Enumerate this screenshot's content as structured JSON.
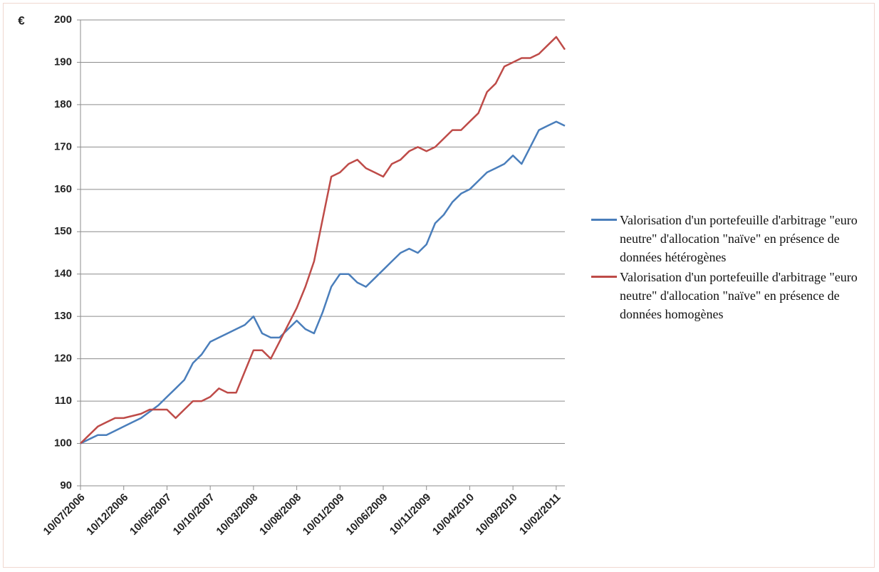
{
  "chart_data": {
    "type": "line",
    "ylabel": "€",
    "categories": [
      "10/07/2006",
      null,
      null,
      null,
      null,
      "10/12/2006",
      null,
      null,
      null,
      null,
      "10/05/2007",
      null,
      null,
      null,
      null,
      "10/10/2007",
      null,
      null,
      null,
      null,
      "10/03/2008",
      null,
      null,
      null,
      null,
      "10/08/2008",
      null,
      null,
      null,
      null,
      "10/01/2009",
      null,
      null,
      null,
      null,
      "10/06/2009",
      null,
      null,
      null,
      null,
      "10/11/2009",
      null,
      null,
      null,
      null,
      "10/04/2010",
      null,
      null,
      null,
      null,
      "10/09/2010",
      null,
      null,
      null,
      null,
      "10/02/2011",
      null
    ],
    "series": [
      {
        "name": "Valorisation d'un portefeuille d'arbitrage \"euro neutre\" d'allocation \"naïve\" en présence de données hétérogènes",
        "color": "#4a7ebb",
        "values": [
          100,
          101,
          102,
          102,
          103,
          104,
          105,
          106,
          107.5,
          109,
          111,
          113,
          115,
          119,
          121,
          124,
          125,
          126,
          127,
          128,
          130,
          126,
          125,
          125,
          127,
          129,
          127,
          126,
          131,
          137,
          140,
          140,
          138,
          137,
          139,
          141,
          143,
          145,
          146,
          145,
          147,
          152,
          154,
          157,
          159,
          160,
          162,
          164,
          165,
          166,
          168,
          166,
          170,
          174,
          175,
          176,
          175
        ]
      },
      {
        "name": "Valorisation d'un portefeuille d'arbitrage \"euro neutre\" d'allocation \"naïve\" en présence de données homogènes",
        "color": "#be4b48",
        "values": [
          100,
          102,
          104,
          105,
          106,
          106,
          106.5,
          107,
          108,
          108,
          108,
          106,
          108,
          110,
          110,
          111,
          113,
          112,
          112,
          117,
          122,
          122,
          120,
          124,
          128,
          132,
          137,
          143,
          153,
          163,
          164,
          166,
          167,
          165,
          164,
          163,
          166,
          167,
          169,
          170,
          169,
          170,
          172,
          174,
          174,
          176,
          178,
          183,
          185,
          189,
          190,
          191,
          191,
          192,
          194,
          196,
          193
        ]
      }
    ],
    "ylim": [
      90,
      200
    ],
    "yticks": [
      90,
      100,
      110,
      120,
      130,
      140,
      150,
      160,
      170,
      180,
      190,
      200
    ],
    "grid": true,
    "legend": "right"
  }
}
